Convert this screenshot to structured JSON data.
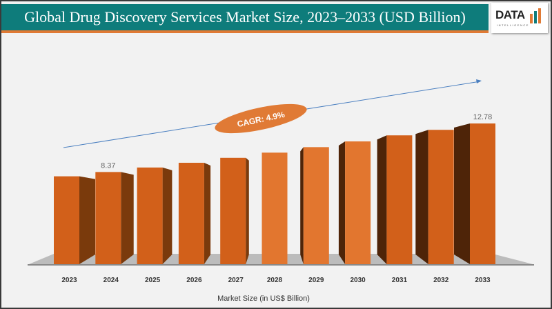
{
  "header": {
    "title": "Global Drug Discovery Services Market Size, 2023–2033 (USD Billion)"
  },
  "logo": {
    "text": "DATA",
    "subtext": "INTELLIGENCE"
  },
  "colors": {
    "header": "#0e7c7b",
    "accent": "#e07a35",
    "bar": "#d2601a",
    "bar_side": "#7a3a0c"
  },
  "chart_data": {
    "type": "bar",
    "title": "Global Drug Discovery Services Market Size, 2023–2033 (USD Billion)",
    "categories": [
      "2023",
      "2024",
      "2025",
      "2026",
      "2027",
      "2028",
      "2029",
      "2030",
      "2031",
      "2032",
      "2033"
    ],
    "values": [
      7.98,
      8.37,
      8.78,
      9.21,
      9.66,
      10.13,
      10.63,
      11.15,
      11.7,
      12.2,
      12.78
    ],
    "data_labels": {
      "1": "8.37",
      "10": "12.78"
    },
    "xlabel": "Market Size (in US$ Billion)",
    "ylabel": "",
    "annotation": "CAGR: 4.9%",
    "grid": false,
    "legend": "none"
  }
}
